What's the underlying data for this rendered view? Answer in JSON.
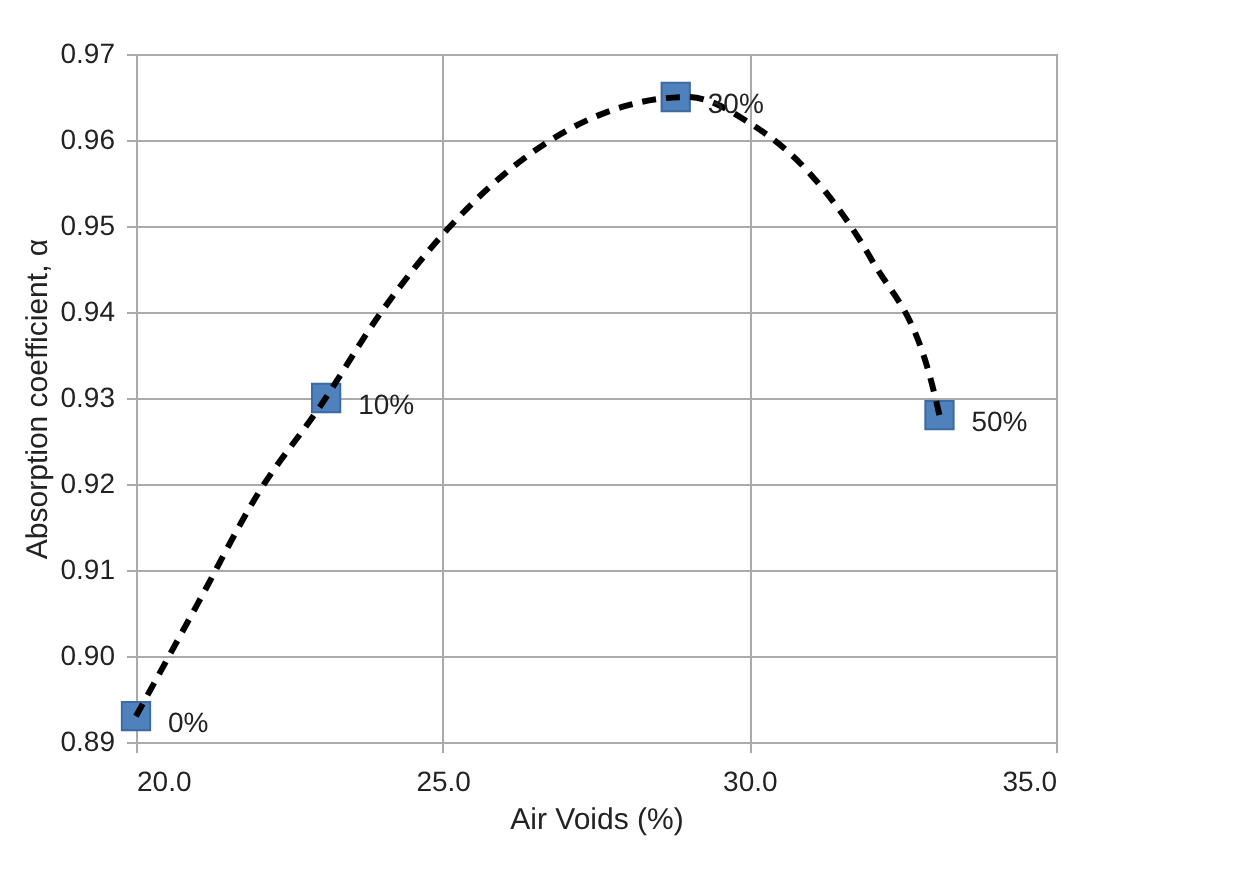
{
  "chart_data": {
    "type": "scatter",
    "xlabel": "Air Voids (%)",
    "ylabel": "Absorption coefficient, α",
    "xlim": [
      20,
      35
    ],
    "ylim": [
      0.89,
      0.97
    ],
    "xticks": [
      {
        "value": 20,
        "label": "20.0"
      },
      {
        "value": 25,
        "label": "25.0"
      },
      {
        "value": 30,
        "label": "30.0"
      },
      {
        "value": 35,
        "label": "35.0"
      }
    ],
    "yticks": [
      0.89,
      {
        "value": 0.9,
        "label": "0.90"
      },
      0.91,
      0.92,
      0.93,
      0.94,
      0.95,
      0.96,
      0.97
    ],
    "grid": true,
    "marker": "square",
    "series": [
      {
        "type": "scatter",
        "color": "#4f81bd",
        "x": [
          20.0,
          23.1,
          28.8,
          33.1
        ],
        "values": [
          0.893,
          0.93,
          0.965,
          0.928
        ]
      },
      {
        "type": "line",
        "color": "#000000",
        "line_style": "dashed",
        "marker": "none",
        "x": [
          20.0,
          21.0,
          22.0,
          23.0,
          24.0,
          25.0,
          26.0,
          27.0,
          28.0,
          29.0,
          30.0,
          31.0,
          32.0,
          33.0,
          33.1
        ],
        "values": [
          0.893,
          0.906,
          0.919,
          0.929,
          0.94,
          0.949,
          0.956,
          0.961,
          0.964,
          0.965,
          0.962,
          0.956,
          0.946,
          0.931,
          0.928
        ]
      }
    ],
    "annotations": [
      {
        "text": "0%",
        "x": 20.0,
        "y": 0.893
      },
      {
        "text": "10%",
        "x": 23.1,
        "y": 0.93
      },
      {
        "text": "30%",
        "x": 28.8,
        "y": 0.965
      },
      {
        "text": "50%",
        "x": 33.1,
        "y": 0.928
      }
    ]
  }
}
